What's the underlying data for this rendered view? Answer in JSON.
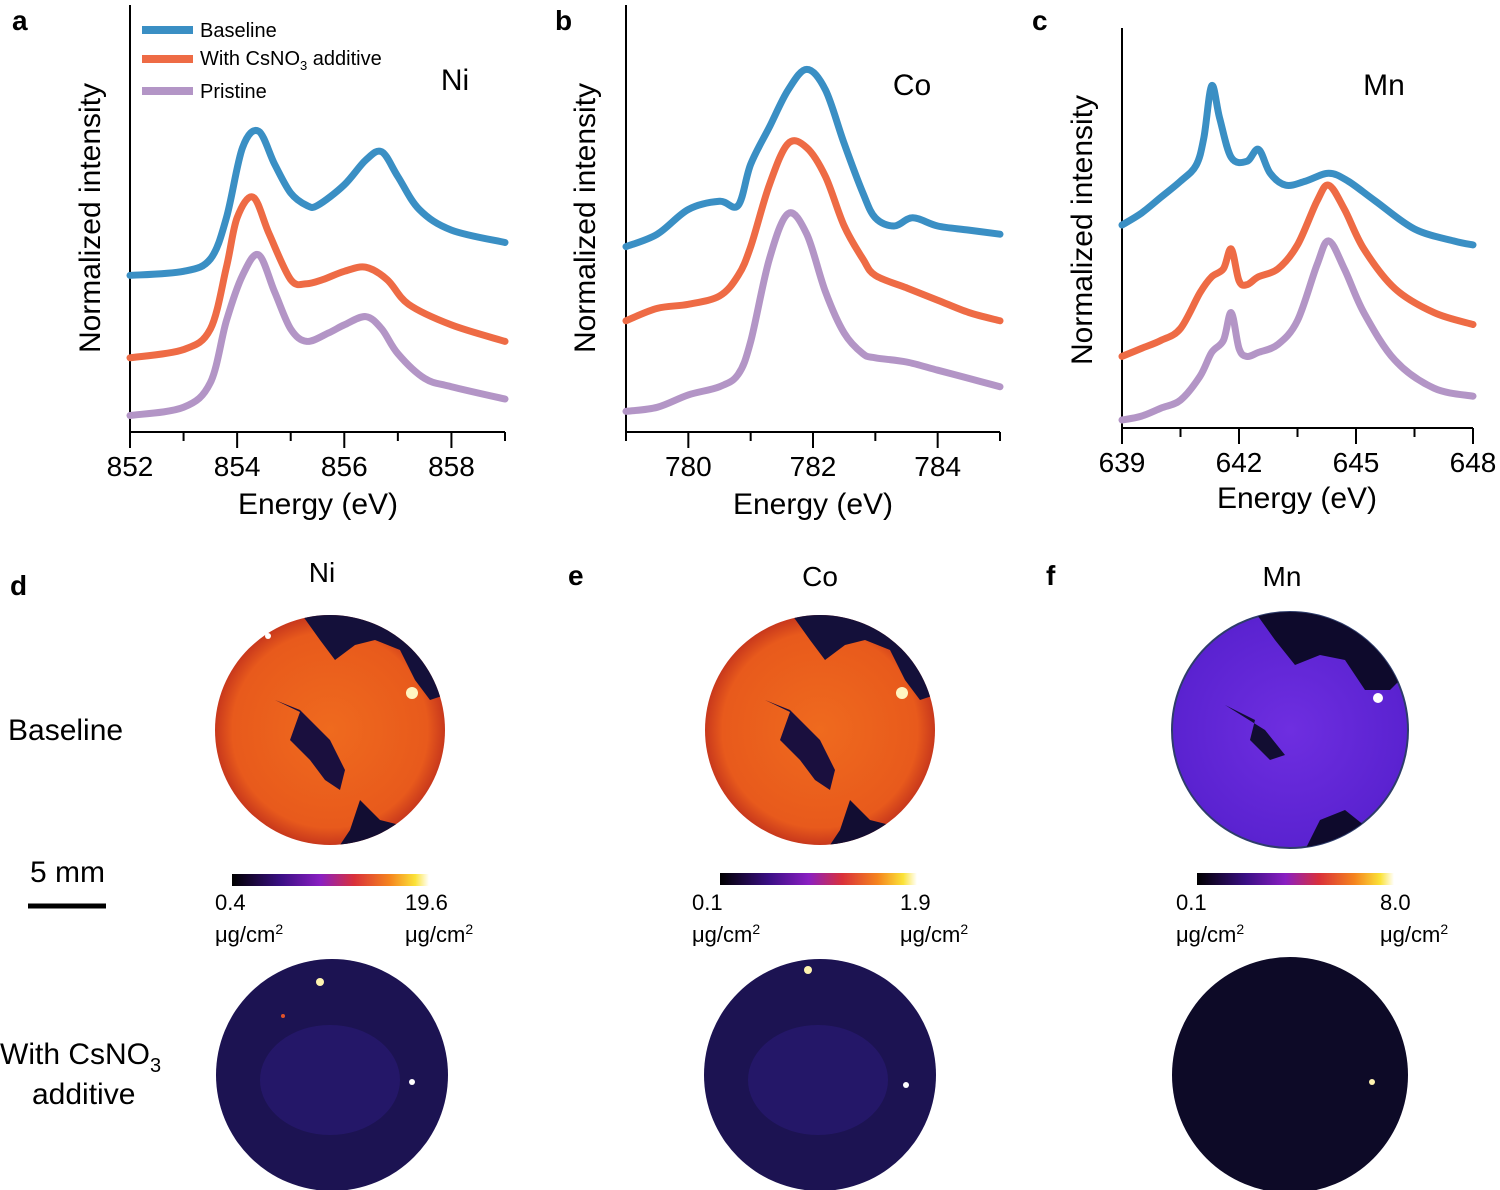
{
  "colors": {
    "baseline": "#3a8fc4",
    "csno3": "#ee6b45",
    "pristine": "#b395c6"
  },
  "legend": {
    "baseline": "Baseline",
    "csno3_prefix": "With CsNO",
    "csno3_sub": "3",
    "csno3_suffix": " additive",
    "pristine": "Pristine"
  },
  "chart_data": [
    {
      "type": "line",
      "panel": "a",
      "element": "Ni",
      "xlabel": "Energy (eV)",
      "ylabel": "Normalized intensity",
      "xlim": [
        852,
        859
      ],
      "ylim": [
        0,
        1
      ],
      "xticks": [
        "852",
        "854",
        "856",
        "858"
      ],
      "xtick_values": [
        852,
        854,
        856,
        858
      ],
      "series": [
        {
          "name": "Baseline",
          "x": [
            852,
            853,
            853.5,
            853.8,
            854.1,
            854.4,
            854.7,
            855.0,
            855.3,
            855.5,
            856.0,
            856.4,
            856.7,
            857.0,
            857.4,
            858.0,
            859.0
          ],
          "y": [
            0.38,
            0.39,
            0.42,
            0.52,
            0.69,
            0.73,
            0.65,
            0.58,
            0.55,
            0.55,
            0.6,
            0.66,
            0.68,
            0.62,
            0.54,
            0.49,
            0.46
          ]
        },
        {
          "name": "With CsNO3 additive",
          "x": [
            852,
            853,
            853.5,
            853.8,
            854.0,
            854.3,
            854.6,
            855.0,
            855.3,
            855.6,
            856.0,
            856.4,
            856.8,
            857.2,
            858.0,
            859.0
          ],
          "y": [
            0.18,
            0.2,
            0.25,
            0.4,
            0.52,
            0.57,
            0.48,
            0.37,
            0.36,
            0.37,
            0.39,
            0.4,
            0.37,
            0.31,
            0.26,
            0.22
          ]
        },
        {
          "name": "Pristine",
          "x": [
            852,
            853,
            853.5,
            853.8,
            854.1,
            854.4,
            854.7,
            855.0,
            855.3,
            855.7,
            856.0,
            856.4,
            856.7,
            857.0,
            857.5,
            858.0,
            859.0
          ],
          "y": [
            0.04,
            0.06,
            0.12,
            0.27,
            0.38,
            0.43,
            0.34,
            0.25,
            0.22,
            0.24,
            0.26,
            0.28,
            0.25,
            0.19,
            0.13,
            0.11,
            0.08
          ]
        }
      ]
    },
    {
      "type": "line",
      "panel": "b",
      "element": "Co",
      "xlabel": "Energy (eV)",
      "ylabel": "Normalized intensity",
      "xlim": [
        779,
        785
      ],
      "ylim": [
        0,
        1
      ],
      "xticks": [
        "780",
        "782",
        "784"
      ],
      "xtick_values": [
        780,
        782,
        784
      ],
      "series": [
        {
          "name": "Baseline",
          "x": [
            779,
            779.5,
            780.0,
            780.5,
            780.8,
            781.0,
            781.3,
            781.6,
            781.9,
            782.2,
            782.5,
            782.8,
            783.0,
            783.3,
            783.6,
            784.0,
            784.5,
            785.0
          ],
          "y": [
            0.45,
            0.48,
            0.54,
            0.56,
            0.55,
            0.65,
            0.74,
            0.83,
            0.88,
            0.83,
            0.7,
            0.58,
            0.52,
            0.5,
            0.52,
            0.5,
            0.49,
            0.48
          ]
        },
        {
          "name": "With CsNO3 additive",
          "x": [
            779,
            779.5,
            780.0,
            780.5,
            780.8,
            781.0,
            781.3,
            781.6,
            781.9,
            782.2,
            782.5,
            782.8,
            783.0,
            783.5,
            784.0,
            784.5,
            785.0
          ],
          "y": [
            0.27,
            0.3,
            0.31,
            0.33,
            0.38,
            0.45,
            0.6,
            0.7,
            0.69,
            0.62,
            0.5,
            0.42,
            0.38,
            0.35,
            0.32,
            0.29,
            0.27
          ]
        },
        {
          "name": "Pristine",
          "x": [
            779,
            779.5,
            780.0,
            780.5,
            780.8,
            781.0,
            781.3,
            781.6,
            781.9,
            782.2,
            782.5,
            782.8,
            783.0,
            783.5,
            784.0,
            784.5,
            785.0
          ],
          "y": [
            0.05,
            0.06,
            0.09,
            0.11,
            0.14,
            0.22,
            0.42,
            0.53,
            0.48,
            0.34,
            0.24,
            0.19,
            0.18,
            0.17,
            0.15,
            0.13,
            0.11
          ]
        }
      ]
    },
    {
      "type": "line",
      "panel": "c",
      "element": "Mn",
      "xlabel": "Energy (eV)",
      "ylabel": "Normalized intensity",
      "xlim": [
        639,
        648
      ],
      "ylim": [
        0,
        1
      ],
      "xticks": [
        "639",
        "642",
        "645",
        "648"
      ],
      "xtick_values": [
        639,
        642,
        645,
        648
      ],
      "series": [
        {
          "name": "Baseline",
          "x": [
            639,
            639.5,
            640.0,
            640.5,
            640.9,
            641.1,
            641.3,
            641.5,
            641.8,
            642.2,
            642.5,
            642.8,
            643.2,
            643.7,
            644.3,
            644.8,
            645.5,
            646.5,
            647.5,
            648.0
          ],
          "y": [
            0.51,
            0.54,
            0.58,
            0.62,
            0.66,
            0.73,
            0.86,
            0.78,
            0.68,
            0.67,
            0.7,
            0.64,
            0.61,
            0.62,
            0.64,
            0.62,
            0.57,
            0.5,
            0.47,
            0.46
          ]
        },
        {
          "name": "With CsNO3 additive",
          "x": [
            639,
            639.5,
            640.0,
            640.5,
            641.0,
            641.3,
            641.6,
            641.8,
            642.0,
            642.2,
            642.5,
            643.0,
            643.5,
            644.0,
            644.3,
            644.7,
            645.2,
            646.0,
            647.0,
            648.0
          ],
          "y": [
            0.18,
            0.2,
            0.22,
            0.25,
            0.34,
            0.38,
            0.4,
            0.45,
            0.37,
            0.36,
            0.38,
            0.4,
            0.46,
            0.57,
            0.61,
            0.55,
            0.45,
            0.35,
            0.29,
            0.26
          ]
        },
        {
          "name": "Pristine",
          "x": [
            639,
            639.5,
            640.0,
            640.5,
            641.0,
            641.3,
            641.6,
            641.8,
            642.0,
            642.2,
            642.5,
            643.0,
            643.5,
            644.0,
            644.3,
            644.7,
            645.2,
            646.0,
            647.0,
            648.0
          ],
          "y": [
            0.02,
            0.03,
            0.05,
            0.07,
            0.13,
            0.19,
            0.22,
            0.29,
            0.2,
            0.18,
            0.19,
            0.21,
            0.27,
            0.41,
            0.47,
            0.4,
            0.29,
            0.17,
            0.1,
            0.08
          ]
        }
      ]
    }
  ],
  "maps": {
    "panels": [
      {
        "label": "d",
        "element": "Ni",
        "cb_min": "0.4",
        "cb_max": "19.6"
      },
      {
        "label": "e",
        "element": "Co",
        "cb_min": "0.1",
        "cb_max": "1.9"
      },
      {
        "label": "f",
        "element": "Mn",
        "cb_min": "0.1",
        "cb_max": "8.0"
      }
    ],
    "unit": "μg/cm",
    "unit_sup": "2",
    "row_baseline": "Baseline",
    "row_csno3_prefix": "With CsNO",
    "row_csno3_sub": "3",
    "row_csno3_line2": "additive",
    "scale_bar": "5 mm"
  }
}
